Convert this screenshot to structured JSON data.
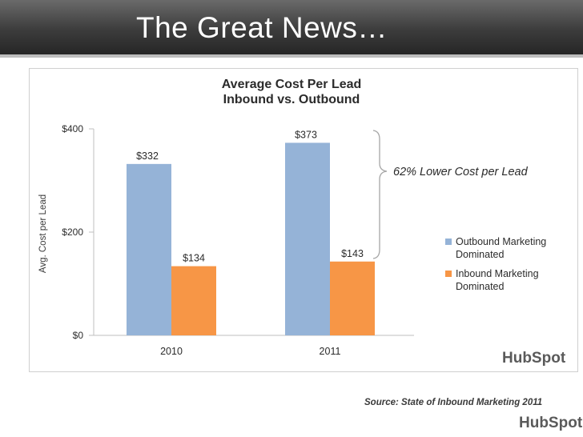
{
  "slide": {
    "title": "The Great News…",
    "source": "Source: State of Inbound Marketing 2011",
    "brand_logo": "HubSpot"
  },
  "chart_data": {
    "type": "bar",
    "title": "Average Cost Per Lead",
    "subtitle": "Inbound vs. Outbound",
    "ylabel": "Avg. Cost per Lead",
    "xlabel": "",
    "categories": [
      "2010",
      "2011"
    ],
    "ylim": [
      0,
      400
    ],
    "yticks": [
      {
        "value": 0,
        "label": "$0"
      },
      {
        "value": 200,
        "label": "$200"
      },
      {
        "value": 400,
        "label": "$400"
      }
    ],
    "series": [
      {
        "name": "Outbound Marketing Dominated",
        "legend_lines": [
          "Outbound Marketing",
          "Dominated"
        ],
        "color": "#95b3d7",
        "values": [
          332,
          373
        ],
        "labels": [
          "$332",
          "$373"
        ]
      },
      {
        "name": "Inbound Marketing Dominated",
        "legend_lines": [
          "Inbound Marketing",
          "Dominated"
        ],
        "color": "#f79646",
        "values": [
          134,
          143
        ],
        "labels": [
          "$134",
          "$143"
        ]
      }
    ],
    "annotation": "62% Lower Cost per Lead",
    "legend_position": "right",
    "grid": false
  }
}
